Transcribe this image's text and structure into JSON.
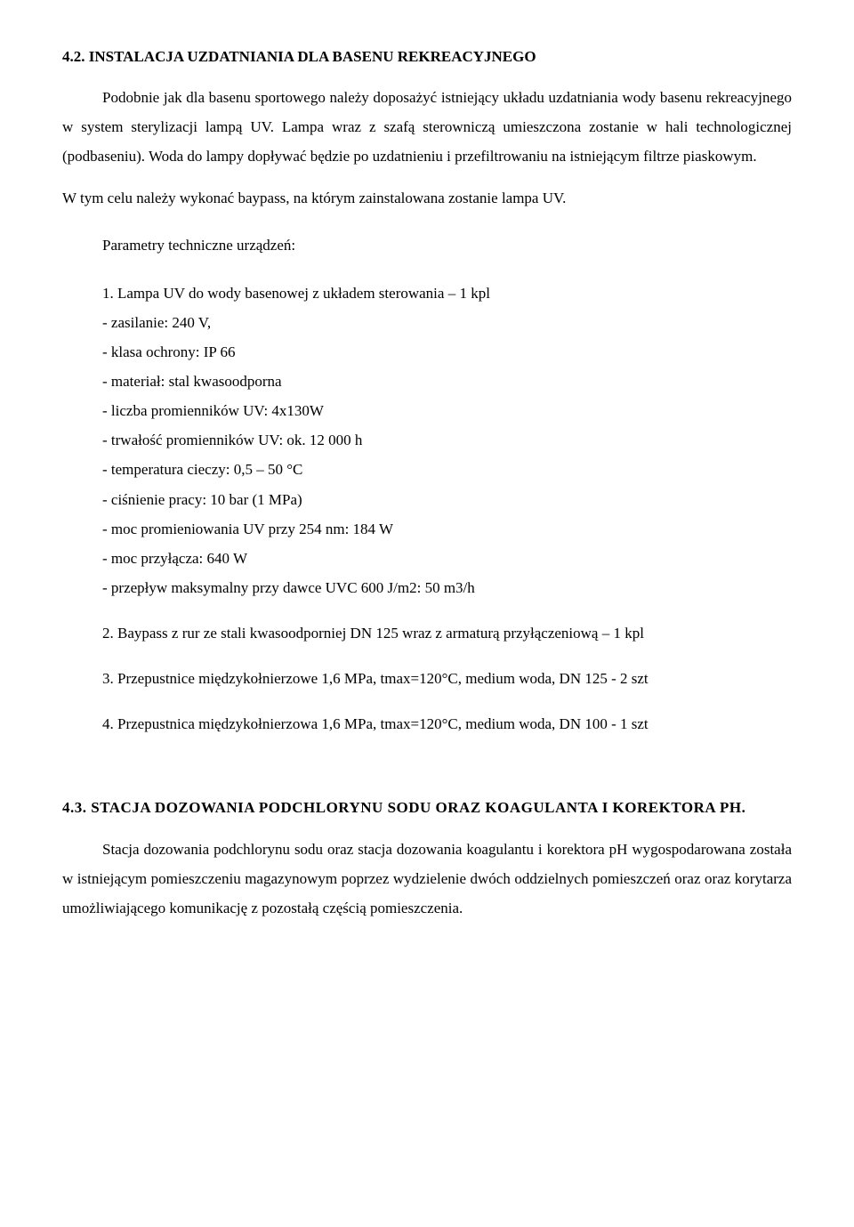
{
  "sections": {
    "heading42": "4.2. INSTALACJA UZDATNIANIA DLA BASENU REKREACYJNEGO",
    "para42_1": "Podobnie jak dla basenu sportowego należy doposażyć istniejący układu uzdatniania wody basenu rekreacyjnego w system sterylizacji lampą UV. Lampa wraz z szafą sterowniczą umieszczona zostanie w hali technologicznej (podbaseniu). Woda do lampy dopływać będzie po uzdatnieniu i przefiltrowaniu  na istniejącym filtrze piaskowym.",
    "para42_2": "W tym celu należy wykonać baypass, na którym zainstalowana zostanie lampa UV.",
    "subheading_params": "Parametry techniczne  urządzeń:",
    "item1_header": "1. Lampa UV do wody basenowej z układem sterowania – 1 kpl",
    "item1_details": [
      "- zasilanie: 240 V,",
      "- klasa ochrony: IP 66",
      "- materiał: stal kwasoodporna",
      "- liczba promienników UV: 4x130W",
      "- trwałość promienników UV: ok. 12 000 h",
      "- temperatura cieczy: 0,5 – 50 °C",
      "- ciśnienie pracy: 10 bar (1 MPa)",
      "- moc promieniowania UV przy 254 nm: 184 W",
      "- moc przyłącza: 640 W",
      "- przepływ maksymalny przy dawce UVC 600 J/m2: 50 m3/h"
    ],
    "item2": "2. Baypass z rur ze stali kwasoodporniej DN 125 wraz z armaturą  przyłączeniową – 1 kpl",
    "item3": "3. Przepustnice międzykołnierzowe 1,6 MPa, tmax=120°C, medium woda, DN 125 - 2 szt",
    "item4": "4. Przepustnica międzykołnierzowa 1,6 MPa, tmax=120°C, medium woda, DN 100 - 1 szt",
    "heading43_part1": "4.3.  STACJA  DOZOWANIA  PODCHLORYNU  SODU  ORAZ  KOAGULANTA  I KOREKTORA PH.",
    "para43_1": "Stacja dozowania podchlorynu sodu oraz stacja dozowania koagulantu i korektora pH wygospodarowana została w istniejącym pomieszczeniu magazynowym poprzez wydzielenie dwóch oddzielnych  pomieszczeń  oraz  oraz korytarza umożliwiającego komunikację z pozostałą częścią pomieszczenia."
  },
  "colors": {
    "text": "#000000",
    "background": "#ffffff"
  },
  "typography": {
    "font_family": "Times New Roman",
    "body_fontsize": 17,
    "heading_weight": "bold"
  }
}
